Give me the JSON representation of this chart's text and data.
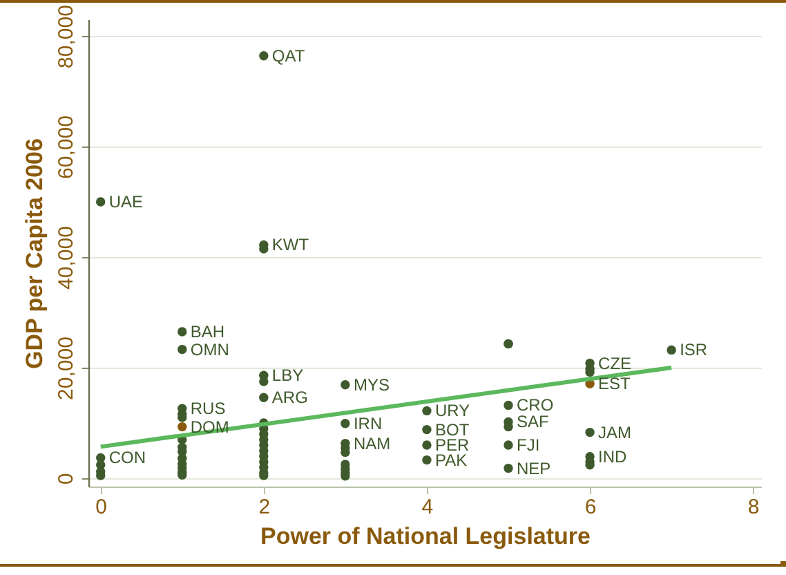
{
  "chart_data": {
    "type": "scatter",
    "xlabel": "Power of National Legislature",
    "ylabel": "GDP per Capita 2006",
    "xlim": [
      -0.15,
      8.1
    ],
    "xticks": [
      0,
      2,
      4,
      6,
      8
    ],
    "ylim": [
      -1500,
      83000
    ],
    "yticks": [
      0,
      {
        "value": 20000,
        "label": "20,000"
      },
      {
        "value": 40000,
        "label": "40,000"
      },
      {
        "value": 60000,
        "label": "60,000"
      },
      {
        "value": 80000,
        "label": "80,000"
      }
    ],
    "grid": "y",
    "marker": "circle",
    "series": [
      {
        "color": "#3f5a2c",
        "x": [
          0,
          0,
          0,
          0,
          0,
          1,
          1,
          1,
          1,
          1,
          1,
          1,
          1,
          1,
          1,
          1,
          1,
          1,
          2,
          2,
          2,
          2,
          2,
          2,
          2,
          2,
          2,
          2,
          2,
          2,
          2,
          2,
          2,
          2,
          2,
          3,
          3,
          3,
          3,
          3,
          3,
          3,
          3,
          3,
          4,
          4,
          4,
          4,
          5,
          5,
          5,
          5,
          5,
          5,
          5,
          6,
          6,
          6,
          6,
          6,
          6,
          6,
          7
        ],
        "values": [
          50000,
          3700,
          2400,
          1200,
          500,
          26500,
          23300,
          12600,
          11600,
          11000,
          7000,
          5600,
          4800,
          3600,
          2600,
          1800,
          1100,
          600,
          76400,
          42200,
          41500,
          18600,
          17500,
          14600,
          10000,
          9000,
          8000,
          7000,
          6000,
          5000,
          4000,
          3000,
          2000,
          1000,
          500,
          16900,
          9900,
          6300,
          5500,
          4700,
          2500,
          1700,
          1000,
          400,
          12200,
          8800,
          6000,
          3300,
          24300,
          24300,
          13200,
          10200,
          9300,
          6000,
          1800,
          20800,
          19800,
          19200,
          8300,
          3900,
          3000,
          2400,
          23200
        ]
      },
      {
        "color": "#8a5a0c",
        "x": [
          1,
          6
        ],
        "values": [
          9300,
          17100
        ]
      },
      {
        "type": "line",
        "marker": "none",
        "color": "#5cb85c",
        "x": [
          0,
          7
        ],
        "values": [
          5700,
          20000
        ]
      }
    ],
    "annotations": [
      {
        "text": "UAE",
        "x": 0,
        "y": 50000
      },
      {
        "text": "CON",
        "x": 0,
        "y": 3700
      },
      {
        "text": "QAT",
        "x": 2,
        "y": 76400
      },
      {
        "text": "KWT",
        "x": 2,
        "y": 42200
      },
      {
        "text": "BAH",
        "x": 1,
        "y": 26500
      },
      {
        "text": "OMN",
        "x": 1,
        "y": 23300
      },
      {
        "text": "RUS",
        "x": 1,
        "y": 12600
      },
      {
        "text": "DOM",
        "x": 1,
        "y": 9300
      },
      {
        "text": "LBY",
        "x": 2,
        "y": 18600
      },
      {
        "text": "ARG",
        "x": 2,
        "y": 14600
      },
      {
        "text": "MYS",
        "x": 3,
        "y": 16900
      },
      {
        "text": "IRN",
        "x": 3,
        "y": 9900
      },
      {
        "text": "NAM",
        "x": 3,
        "y": 6300
      },
      {
        "text": "URY",
        "x": 4,
        "y": 12200
      },
      {
        "text": "BOT",
        "x": 4,
        "y": 8800
      },
      {
        "text": "PER",
        "x": 4,
        "y": 6000
      },
      {
        "text": "PAK",
        "x": 4,
        "y": 3300
      },
      {
        "text": "CRO",
        "x": 5,
        "y": 13200
      },
      {
        "text": "SAF",
        "x": 5,
        "y": 10200
      },
      {
        "text": "FJI",
        "x": 5,
        "y": 6000
      },
      {
        "text": "NEP",
        "x": 5,
        "y": 1800
      },
      {
        "text": "CZE",
        "x": 6,
        "y": 20800
      },
      {
        "text": "EST",
        "x": 6,
        "y": 17100
      },
      {
        "text": "JAM",
        "x": 6,
        "y": 8300
      },
      {
        "text": "IND",
        "x": 6,
        "y": 3900
      },
      {
        "text": "ISR",
        "x": 7,
        "y": 23200
      }
    ]
  }
}
